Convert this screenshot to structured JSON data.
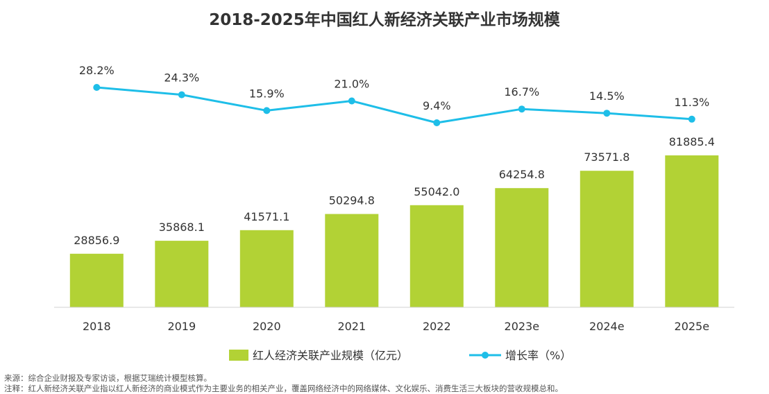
{
  "chart_data": {
    "type": "bar",
    "title": "2018-2025年中国红人新经济关联产业市场规模",
    "categories": [
      "2018",
      "2019",
      "2020",
      "2021",
      "2022",
      "2023e",
      "2024e",
      "2025e"
    ],
    "series": [
      {
        "name": "红人经济关联产业规模（亿元）",
        "type": "bar",
        "values": [
          28856.9,
          35868.1,
          41571.1,
          50294.8,
          55042.0,
          64254.8,
          73571.8,
          81885.4
        ],
        "labels": [
          "28856.9",
          "35868.1",
          "41571.1",
          "50294.8",
          "55042.0",
          "64254.8",
          "73571.8",
          "81885.4"
        ],
        "color": "#B2D235"
      },
      {
        "name": "增长率（%）",
        "type": "line",
        "values": [
          28.2,
          24.3,
          15.9,
          21.0,
          9.4,
          16.7,
          14.5,
          11.3
        ],
        "labels": [
          "28.2%",
          "24.3%",
          "15.9%",
          "21.0%",
          "9.4%",
          "16.7%",
          "14.5%",
          "11.3%"
        ],
        "color": "#1EBEE8"
      }
    ],
    "legend_position": "bottom",
    "grid": false
  },
  "notes": {
    "source": "来源：综合企业财报及专家访谈，根据艾瑞统计模型核算。",
    "note": "注释：红人新经济关联产业指以红人新经济的商业模式作为主要业务的相关产业，覆盖网络经济中的网络媒体、文化娱乐、消费生活三大板块的营收规模总和。"
  }
}
